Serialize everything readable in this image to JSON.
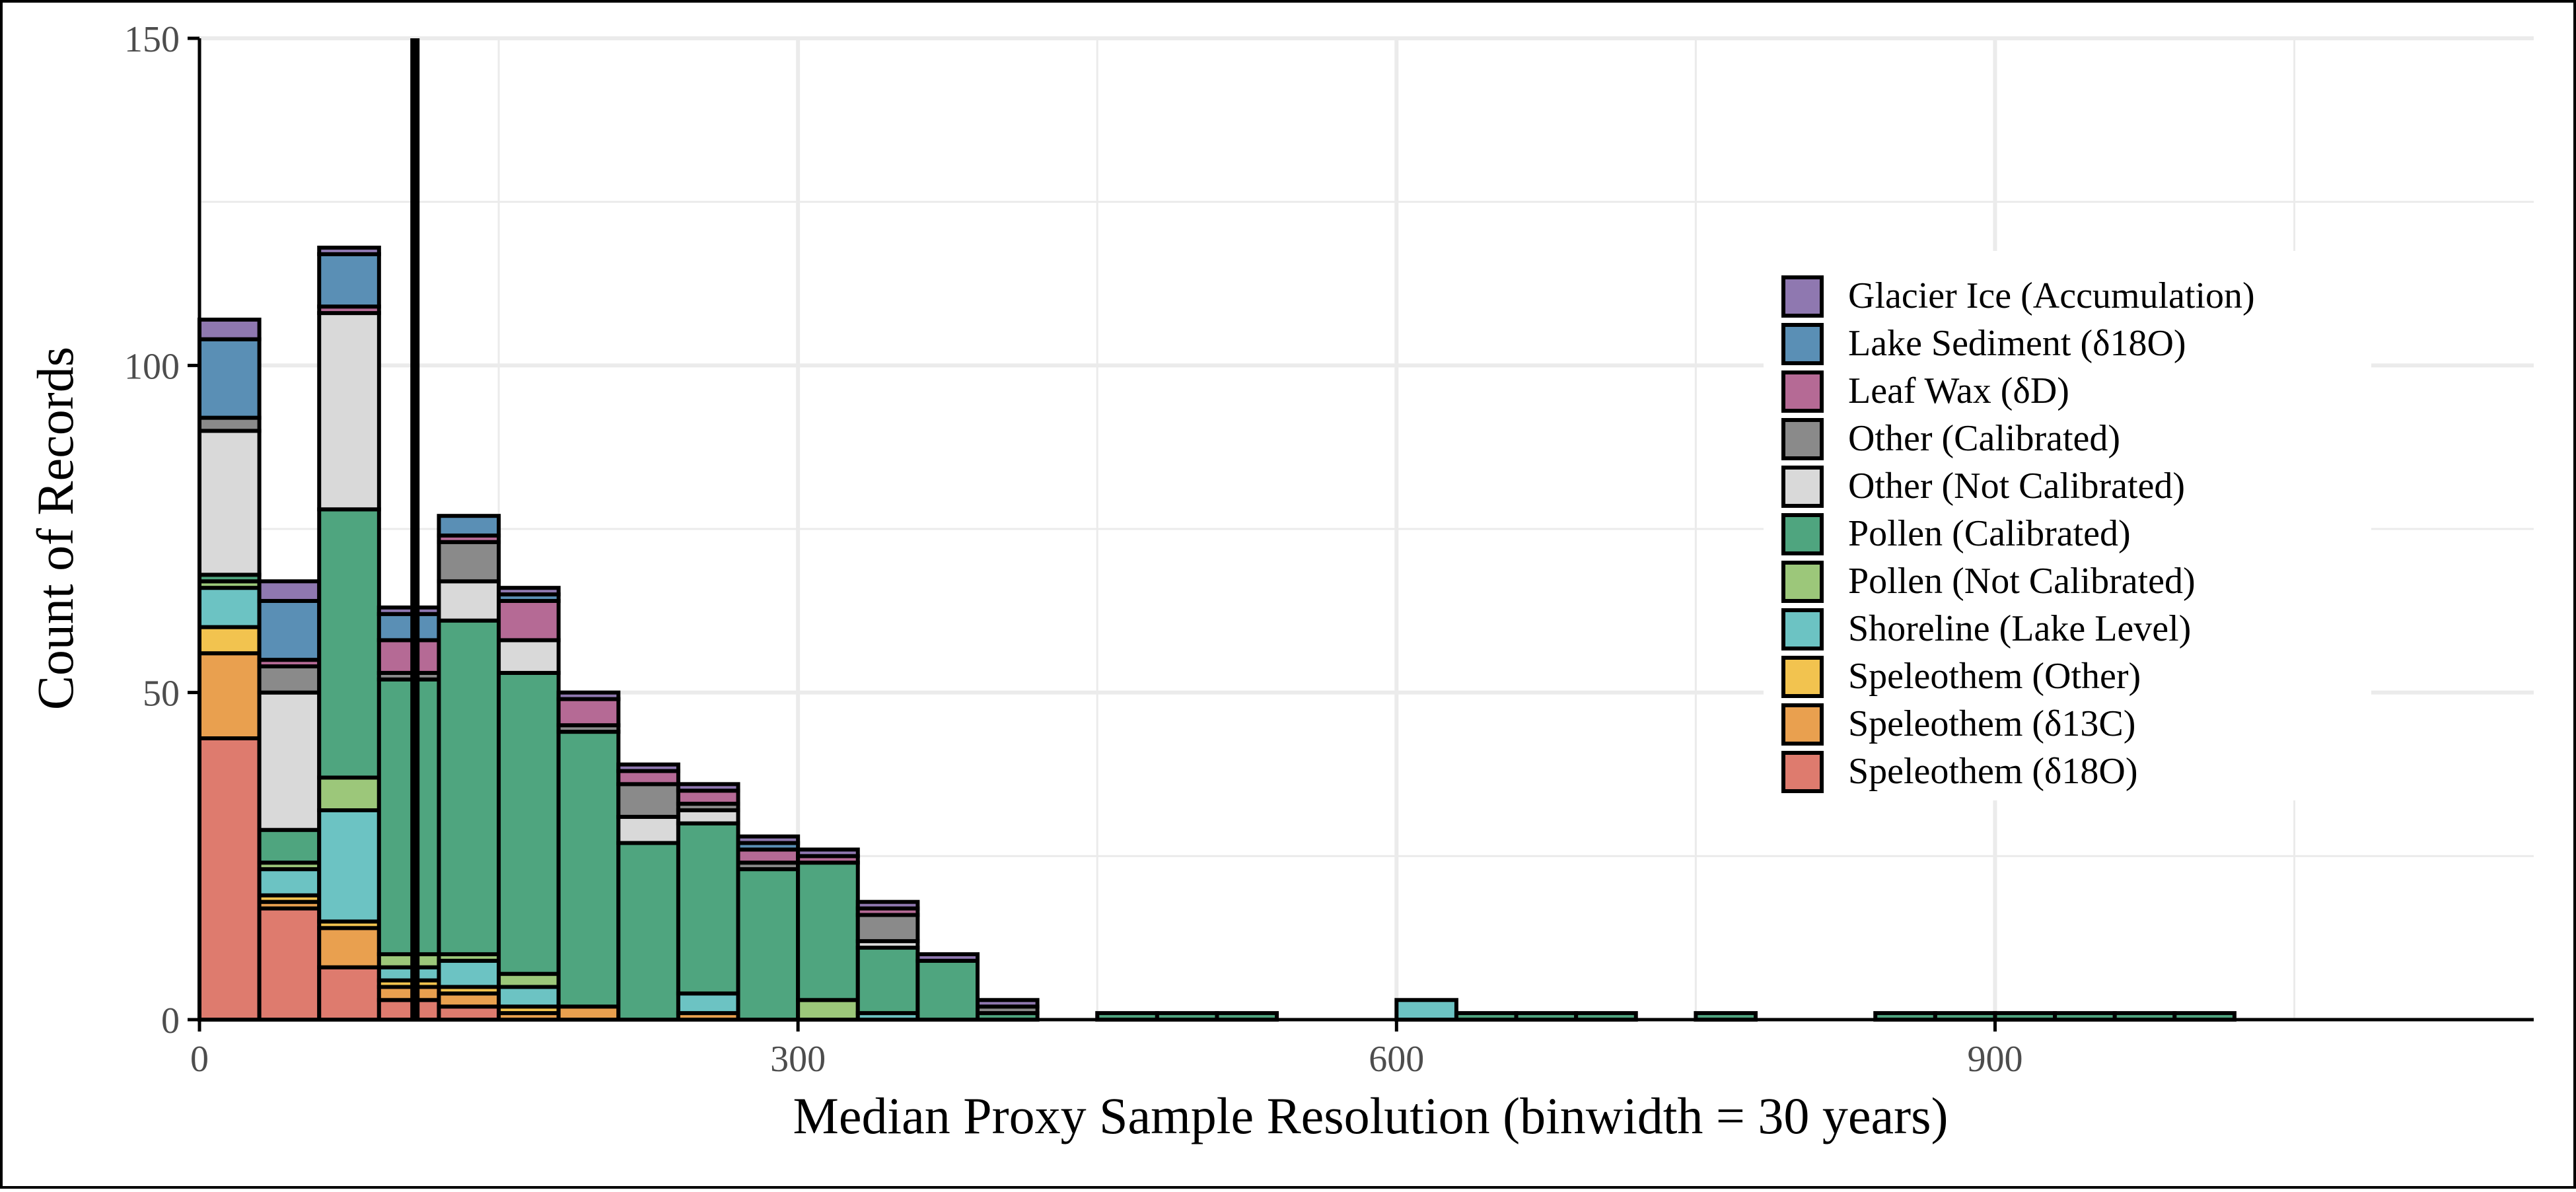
{
  "chart_data": {
    "type": "bar",
    "stacked": true,
    "xlabel": "Median Proxy Sample Resolution (binwidth = 30 years)",
    "ylabel": "Count of Records",
    "xlim": [
      0,
      1170
    ],
    "ylim": [
      0,
      150
    ],
    "x_ticks": [
      0,
      300,
      600,
      900
    ],
    "y_ticks": [
      0,
      50,
      100,
      150
    ],
    "binwidth": 30,
    "grid": true,
    "legend_position": "right-inside",
    "vline": {
      "x": 108,
      "color": "#000000"
    },
    "legend": [
      {
        "name": "Glacier Ice (Accumulation)",
        "color": "#8F78B0"
      },
      {
        "name": "Lake Sediment (δ18O)",
        "color": "#5A8FB5"
      },
      {
        "name": "Leaf Wax (δD)",
        "color": "#B56A95"
      },
      {
        "name": "Other (Calibrated)",
        "color": "#8A8A8A"
      },
      {
        "name": "Other (Not Calibrated)",
        "color": "#D9D9D9"
      },
      {
        "name": "Pollen (Calibrated)",
        "color": "#4FA57F"
      },
      {
        "name": "Pollen (Not Calibrated)",
        "color": "#9CC77A"
      },
      {
        "name": "Shoreline (Lake Level)",
        "color": "#6CC3C3"
      },
      {
        "name": "Speleothem (Other)",
        "color": "#F2C34F"
      },
      {
        "name": "Speleothem (δ13C)",
        "color": "#E9A04F"
      },
      {
        "name": "Speleothem (δ18O)",
        "color": "#DE7B6E"
      }
    ],
    "stack_order_bottom_to_top": [
      "Speleothem (δ18O)",
      "Speleothem (δ13C)",
      "Speleothem (Other)",
      "Shoreline (Lake Level)",
      "Pollen (Not Calibrated)",
      "Pollen (Calibrated)",
      "Other (Not Calibrated)",
      "Other (Calibrated)",
      "Leaf Wax (δD)",
      "Lake Sediment (δ18O)",
      "Glacier Ice (Accumulation)"
    ],
    "bins": [
      {
        "start": 0,
        "counts": [
          43,
          13,
          4,
          6,
          1,
          1,
          22,
          2,
          0,
          12,
          3
        ]
      },
      {
        "start": 30,
        "counts": [
          17,
          1,
          1,
          4,
          1,
          5,
          21,
          4,
          1,
          9,
          3
        ]
      },
      {
        "start": 60,
        "counts": [
          8,
          6,
          1,
          17,
          5,
          41,
          30,
          0,
          1,
          8,
          1
        ]
      },
      {
        "start": 90,
        "counts": [
          3,
          2,
          1,
          2,
          2,
          42,
          0,
          1,
          5,
          4,
          1
        ]
      },
      {
        "start": 120,
        "counts": [
          2,
          2,
          1,
          4,
          1,
          51,
          6,
          6,
          1,
          3,
          0
        ]
      },
      {
        "start": 150,
        "counts": [
          0,
          1,
          1,
          3,
          2,
          46,
          5,
          0,
          6,
          1,
          1
        ]
      },
      {
        "start": 180,
        "counts": [
          0,
          2,
          0,
          0,
          0,
          42,
          0,
          1,
          4,
          0,
          1
        ]
      },
      {
        "start": 210,
        "counts": [
          0,
          0,
          0,
          0,
          0,
          27,
          4,
          5,
          2,
          0,
          1
        ]
      },
      {
        "start": 240,
        "counts": [
          0,
          1,
          0,
          3,
          0,
          26,
          2,
          1,
          2,
          0,
          1
        ]
      },
      {
        "start": 270,
        "counts": [
          0,
          0,
          0,
          0,
          0,
          23,
          0,
          1,
          2,
          1,
          1
        ]
      },
      {
        "start": 300,
        "counts": [
          0,
          0,
          0,
          0,
          3,
          21,
          0,
          0,
          1,
          0,
          1
        ]
      },
      {
        "start": 330,
        "counts": [
          0,
          0,
          0,
          1,
          0,
          10,
          1,
          4,
          1,
          0,
          1
        ]
      },
      {
        "start": 360,
        "counts": [
          0,
          0,
          0,
          0,
          0,
          9,
          0,
          0,
          0,
          0,
          1
        ]
      },
      {
        "start": 390,
        "counts": [
          0,
          0,
          0,
          0,
          0,
          1,
          0,
          1,
          0,
          0,
          1
        ]
      },
      {
        "start": 450,
        "counts": [
          0,
          0,
          0,
          0,
          0,
          1,
          0,
          0,
          0,
          0,
          0
        ]
      },
      {
        "start": 480,
        "counts": [
          0,
          0,
          0,
          0,
          0,
          1,
          0,
          0,
          0,
          0,
          0
        ]
      },
      {
        "start": 510,
        "counts": [
          0,
          0,
          0,
          0,
          0,
          1,
          0,
          0,
          0,
          0,
          0
        ]
      },
      {
        "start": 600,
        "counts": [
          0,
          0,
          0,
          3,
          0,
          0,
          0,
          0,
          0,
          0,
          0
        ]
      },
      {
        "start": 630,
        "counts": [
          0,
          0,
          0,
          0,
          0,
          1,
          0,
          0,
          0,
          0,
          0
        ]
      },
      {
        "start": 660,
        "counts": [
          0,
          0,
          0,
          0,
          0,
          1,
          0,
          0,
          0,
          0,
          0
        ]
      },
      {
        "start": 690,
        "counts": [
          0,
          0,
          0,
          0,
          0,
          1,
          0,
          0,
          0,
          0,
          0
        ]
      },
      {
        "start": 750,
        "counts": [
          0,
          0,
          0,
          0,
          0,
          1,
          0,
          0,
          0,
          0,
          0
        ]
      },
      {
        "start": 840,
        "counts": [
          0,
          0,
          0,
          0,
          0,
          1,
          0,
          0,
          0,
          0,
          0
        ]
      },
      {
        "start": 870,
        "counts": [
          0,
          0,
          0,
          0,
          0,
          1,
          0,
          0,
          0,
          0,
          0
        ]
      },
      {
        "start": 900,
        "counts": [
          0,
          0,
          0,
          0,
          0,
          1,
          0,
          0,
          0,
          0,
          0
        ]
      },
      {
        "start": 930,
        "counts": [
          0,
          0,
          0,
          0,
          0,
          1,
          0,
          0,
          0,
          0,
          0
        ]
      },
      {
        "start": 960,
        "counts": [
          0,
          0,
          0,
          0,
          0,
          1,
          0,
          0,
          0,
          0,
          0
        ]
      },
      {
        "start": 990,
        "counts": [
          0,
          0,
          0,
          0,
          0,
          1,
          0,
          0,
          0,
          0,
          0
        ]
      }
    ]
  }
}
